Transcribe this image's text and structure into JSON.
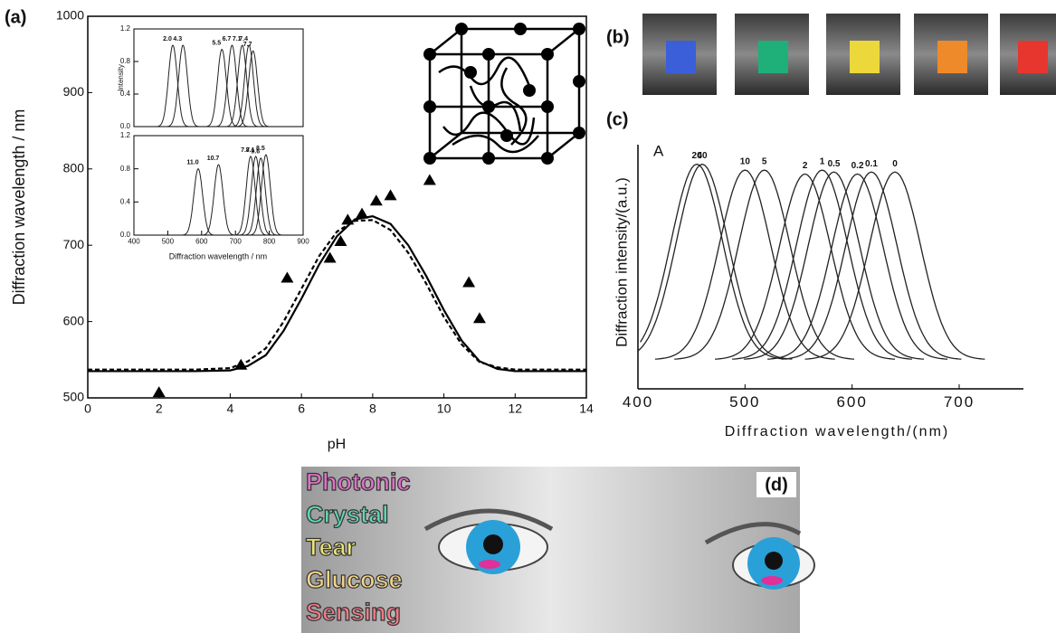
{
  "chart_data": [
    {
      "type": "scatter",
      "panel_label": "(a)",
      "x_label": "pH",
      "y_label": "Diffraction wavelength / nm",
      "xlim": [
        0,
        14
      ],
      "xticks": [
        0,
        2,
        4,
        6,
        8,
        10,
        12,
        14
      ],
      "ylim": [
        500,
        1000
      ],
      "yticks": [
        500,
        600,
        700,
        800,
        900,
        1000
      ],
      "series": [
        {
          "type": "line",
          "style": "solid",
          "color": "#000000",
          "x": [
            0,
            1,
            2,
            3,
            4,
            4.5,
            5,
            5.5,
            6,
            6.5,
            7,
            7.5,
            8,
            8.5,
            9,
            9.5,
            10,
            10.5,
            11,
            11.5,
            12,
            13,
            14
          ],
          "values": [
            535,
            535,
            535,
            535,
            536,
            542,
            556,
            588,
            630,
            675,
            712,
            734,
            738,
            728,
            700,
            660,
            615,
            575,
            548,
            538,
            535,
            535,
            535
          ]
        },
        {
          "type": "line",
          "style": "dashed",
          "color": "#000000",
          "x": [
            0,
            1,
            2,
            3,
            4,
            4.5,
            5,
            5.5,
            6,
            6.5,
            7,
            7.5,
            8,
            8.5,
            9,
            9.5,
            10,
            10.5,
            11,
            11.5,
            12,
            13,
            14
          ],
          "values": [
            537,
            537,
            537,
            537,
            539,
            548,
            565,
            600,
            643,
            686,
            718,
            732,
            733,
            720,
            690,
            650,
            606,
            570,
            547,
            540,
            537,
            537,
            537
          ]
        },
        {
          "type": "scatter",
          "marker": "triangle",
          "color": "#000000",
          "x": [
            2.0,
            4.3,
            5.6,
            6.8,
            7.1,
            7.3,
            7.7,
            8.1,
            8.5,
            9.6,
            10.7,
            11.0
          ],
          "values": [
            507,
            543,
            657,
            683,
            705,
            733,
            741,
            758,
            765,
            785,
            651,
            604
          ]
        }
      ]
    },
    {
      "type": "peaks",
      "y_label": "Intensity",
      "xlim": [
        400,
        900
      ],
      "ylim": [
        0,
        1.2
      ],
      "yticks": [
        {
          "value": 0,
          "label": "0.0"
        },
        0.4,
        0.8,
        1.2
      ],
      "series": [
        {
          "name": "2.0",
          "x": 515,
          "value": 1.0
        },
        {
          "name": "4.3",
          "x": 545,
          "value": 1.0
        },
        {
          "name": "5.5",
          "x": 660,
          "value": 0.95
        },
        {
          "name": "6.7",
          "x": 690,
          "value": 1.0
        },
        {
          "name": "7.1",
          "x": 720,
          "value": 1.0
        },
        {
          "name": "7.4",
          "x": 740,
          "value": 1.0
        },
        {
          "name": "7.7",
          "x": 752,
          "value": 0.93
        }
      ]
    },
    {
      "type": "peaks",
      "x_label": "Diffraction wavelength / nm",
      "xlim": [
        400,
        900
      ],
      "xticks": [
        400,
        500,
        600,
        700,
        800,
        900
      ],
      "ylim": [
        0,
        1.2
      ],
      "yticks": [
        {
          "value": 0,
          "label": "0.0"
        },
        0.4,
        0.8,
        1.2
      ],
      "series": [
        {
          "name": "11.0",
          "x": 590,
          "value": 0.8
        },
        {
          "name": "10.7",
          "x": 650,
          "value": 0.85
        },
        {
          "name": "7.7",
          "x": 745,
          "value": 0.95
        },
        {
          "name": "8.1",
          "x": 760,
          "value": 0.95
        },
        {
          "name": "9.6",
          "x": 775,
          "value": 0.93
        },
        {
          "name": "8.5",
          "x": 790,
          "value": 0.97
        }
      ]
    },
    {
      "type": "peaks",
      "panel_label": "(c)",
      "annotation": "A",
      "x_label": "Diffraction wavelength/(nm)",
      "y_label": "Diffraction intensity/(a.u.)",
      "xlim": [
        400,
        760
      ],
      "xticks": [
        400,
        500,
        600,
        700
      ],
      "ylim": [
        -0.15,
        1.1
      ],
      "series": [
        {
          "name": "20",
          "x": 455,
          "value": 1.0
        },
        {
          "name": "40",
          "x": 460,
          "value": 1.0
        },
        {
          "name": "10",
          "x": 500,
          "value": 0.97
        },
        {
          "name": "5",
          "x": 518,
          "value": 0.97
        },
        {
          "name": "2",
          "x": 556,
          "value": 0.95
        },
        {
          "name": "1",
          "x": 572,
          "value": 0.97
        },
        {
          "name": "0.5",
          "x": 583,
          "value": 0.96
        },
        {
          "name": "0.2",
          "x": 605,
          "value": 0.95
        },
        {
          "name": "0.1",
          "x": 618,
          "value": 0.96
        },
        {
          "name": "0",
          "x": 640,
          "value": 0.96
        }
      ]
    }
  ],
  "panel_b": {
    "label": "(b)"
  },
  "panel_d": {
    "label": "(d)",
    "words": [
      "Photonic",
      "Crystal",
      "Tear",
      "Glucose",
      "Sensing"
    ]
  }
}
